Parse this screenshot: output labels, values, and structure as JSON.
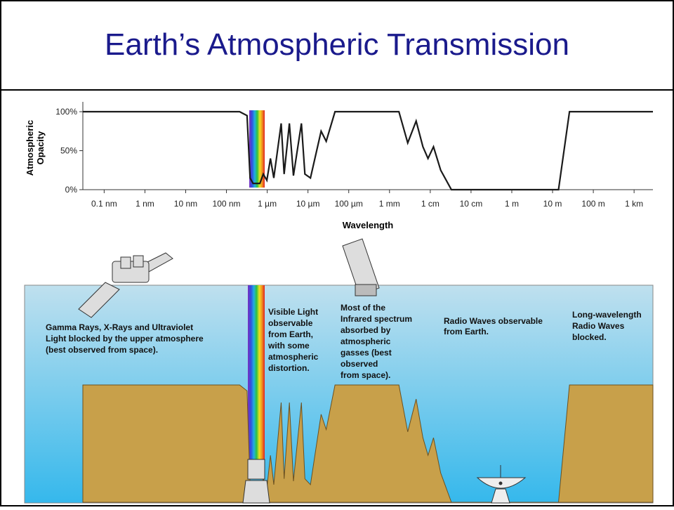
{
  "chart_data": {
    "type": "line",
    "title": "Earth’s Atmospheric Transmission",
    "xlabel": "Wavelength",
    "ylabel": [
      "Atmospheric",
      "Opacity"
    ],
    "xscale": "log",
    "color": "#1a1a1a",
    "xlim": [
      3e-11,
      2900
    ],
    "ylim": [
      0,
      100
    ],
    "xticks": [
      {
        "value": 1e-10,
        "label": "0.1 nm"
      },
      {
        "value": 1e-09,
        "label": "1 nm"
      },
      {
        "value": 1e-08,
        "label": "10 nm"
      },
      {
        "value": 1e-07,
        "label": "100 nm"
      },
      {
        "value": 1e-06,
        "label": "1 µm"
      },
      {
        "value": 1e-05,
        "label": "10 µm"
      },
      {
        "value": 0.0001,
        "label": "100 µm"
      },
      {
        "value": 0.001,
        "label": "1 mm"
      },
      {
        "value": 0.01,
        "label": "1 cm"
      },
      {
        "value": 0.1,
        "label": "10 cm"
      },
      {
        "value": 1,
        "label": "1 m"
      },
      {
        "value": 10,
        "label": "10 m"
      },
      {
        "value": 100,
        "label": "100 m"
      },
      {
        "value": 1000,
        "label": "1 km"
      }
    ],
    "yticks": [
      {
        "value": 0,
        "label": "0%"
      },
      {
        "value": 50,
        "label": "50%"
      },
      {
        "value": 100,
        "label": "100%"
      }
    ],
    "x": [
      3e-11,
      2.1e-07,
      3.2e-07,
      3.8e-07,
      4.5e-07,
      6.6e-07,
      8e-07,
      9.8e-07,
      1.2e-06,
      1.45e-06,
      2.2e-06,
      2.6e-06,
      3.5e-06,
      4.4e-06,
      6.9e-06,
      8.4e-06,
      1.15e-05,
      2.1e-05,
      2.8e-05,
      4.6e-05,
      0.0017,
      0.0028,
      0.0045,
      0.0066,
      0.0088,
      0.012,
      0.018,
      0.033,
      14,
      26,
      2900
    ],
    "values": [
      100,
      100,
      95,
      15,
      8,
      8,
      20,
      12,
      40,
      15,
      85,
      20,
      85,
      18,
      85,
      20,
      15,
      75,
      62,
      100,
      100,
      60,
      88,
      55,
      40,
      55,
      25,
      0,
      0,
      100,
      100
    ],
    "annotations": [
      [
        "Gamma Rays, X-Rays and Ultraviolet",
        "Light blocked by the upper atmosphere",
        "(best observed from space)."
      ],
      [
        "Visible Light",
        "observable",
        "from Earth,",
        "with some",
        "atmospheric",
        "distortion."
      ],
      [
        "Most of the",
        "Infrared spectrum",
        "absorbed by",
        "atmospheric",
        "gasses (best",
        "observed",
        "from space)."
      ],
      [
        "Radio Waves observable",
        "from Earth."
      ],
      [
        "Long-wavelength",
        "Radio Waves",
        "blocked."
      ]
    ]
  }
}
